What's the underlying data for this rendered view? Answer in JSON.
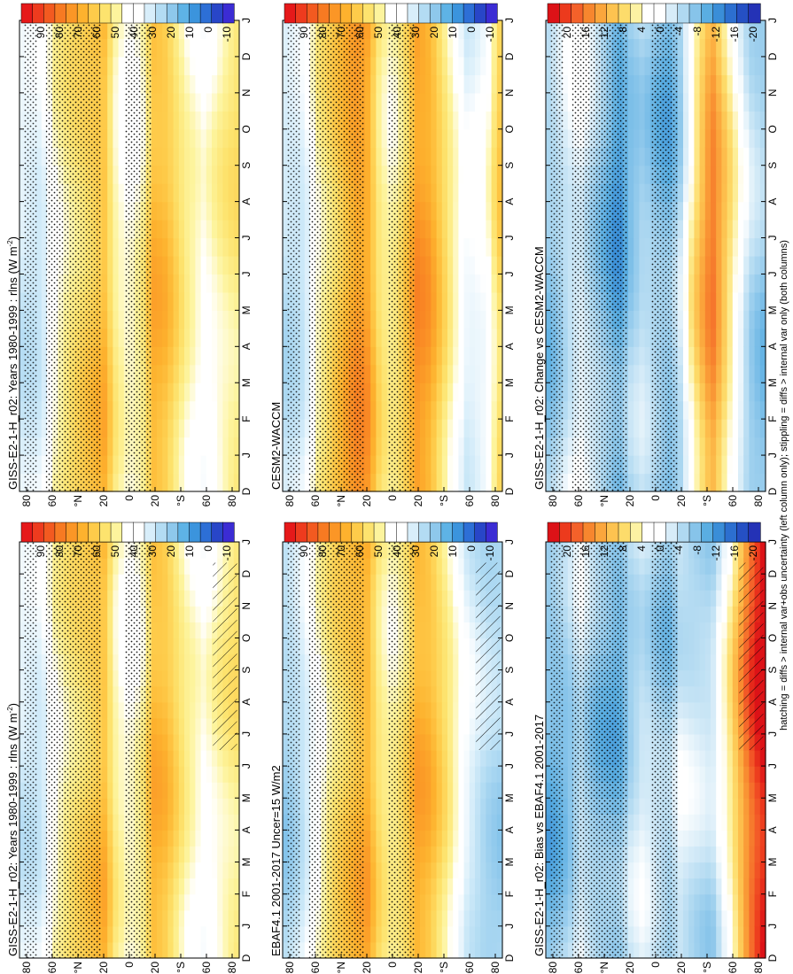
{
  "footer_note": "hatching = diffs > internal var+obs uncertainty (left column only); stippling = diffs > internal var only (both columns)",
  "colors": {
    "abs_scale": [
      "#e6191a",
      "#ee3b1e",
      "#f35a20",
      "#f77a22",
      "#fb9626",
      "#fdb22e",
      "#fecb4a",
      "#fde36e",
      "#fdf49d",
      "#ffffff",
      "#ffffff",
      "#d8eefa",
      "#b3dcf3",
      "#8ec8ec",
      "#5eb3e6",
      "#3b94dd",
      "#2d6fd6",
      "#2846c8",
      "#3b2cd4"
    ],
    "diff_scale": [
      "#dc1217",
      "#ec3a1d",
      "#f4612a",
      "#f7862e",
      "#fba63c",
      "#fdc350",
      "#fddc6b",
      "#fdf2a3",
      "#ffffff",
      "#ffffff",
      "#d7ecf8",
      "#b0d9f1",
      "#87c4ea",
      "#5aaee2",
      "#3a8ed8",
      "#2c6fd0",
      "#2550c4",
      "#2432b6"
    ]
  },
  "chart_data": [
    {
      "type": "heatmap",
      "title": "GISS-E2-1-H_r02: Years 1980-1999 : rlns (W m",
      "title_superscript": "-2",
      "title_tail": ")",
      "x_ticks": [
        "D",
        "J",
        "F",
        "M",
        "A",
        "M",
        "J",
        "J",
        "A",
        "S",
        "O",
        "N",
        "D",
        "J"
      ],
      "y_ticks": [
        "80",
        "60",
        "°N",
        "20",
        "0",
        "20",
        "°S",
        "60",
        "80"
      ],
      "colorbar_ticks": [
        "90",
        "80",
        "70",
        "60",
        "50",
        "40",
        "30",
        "20",
        "10",
        "0",
        "-10"
      ],
      "colorbar_range": [
        -15,
        95
      ],
      "value_range": [
        5,
        75
      ],
      "center_value": 40,
      "lat_profile": [
        {
          "lat": 85,
          "value": 28
        },
        {
          "lat": 70,
          "value": 28
        },
        {
          "lat": 60,
          "value": 42
        },
        {
          "lat": 48,
          "value": 50
        },
        {
          "lat": 30,
          "value": 58
        },
        {
          "lat": 20,
          "value": 62
        },
        {
          "lat": 10,
          "value": 45
        },
        {
          "lat": 0,
          "value": 40
        },
        {
          "lat": -10,
          "value": 45
        },
        {
          "lat": -20,
          "value": 63
        },
        {
          "lat": -30,
          "value": 60
        },
        {
          "lat": -45,
          "value": 46
        },
        {
          "lat": -60,
          "value": 38
        },
        {
          "lat": -75,
          "value": 46
        },
        {
          "lat": -85,
          "value": 50
        }
      ]
    },
    {
      "type": "heatmap",
      "title": "GISS-E2-1-H_r02: Years 1980-1999 : rlns (W m",
      "title_superscript": "-2",
      "title_tail": ")",
      "x_ticks": [
        "D",
        "J",
        "F",
        "M",
        "A",
        "M",
        "J",
        "J",
        "A",
        "S",
        "O",
        "N",
        "D",
        "J"
      ],
      "y_ticks": [
        "80",
        "60",
        "°N",
        "20",
        "0",
        "20",
        "°S",
        "60",
        "80"
      ],
      "colorbar_ticks": [
        "90",
        "80",
        "70",
        "60",
        "50",
        "40",
        "30",
        "20",
        "10",
        "0",
        "-10"
      ],
      "colorbar_range": [
        -15,
        95
      ],
      "value_range": [
        5,
        75
      ],
      "center_value": 40,
      "lat_profile": [
        {
          "lat": 85,
          "value": 28
        },
        {
          "lat": 70,
          "value": 28
        },
        {
          "lat": 60,
          "value": 42
        },
        {
          "lat": 48,
          "value": 50
        },
        {
          "lat": 30,
          "value": 58
        },
        {
          "lat": 20,
          "value": 62
        },
        {
          "lat": 10,
          "value": 45
        },
        {
          "lat": 0,
          "value": 40
        },
        {
          "lat": -10,
          "value": 45
        },
        {
          "lat": -20,
          "value": 63
        },
        {
          "lat": -30,
          "value": 60
        },
        {
          "lat": -45,
          "value": 46
        },
        {
          "lat": -60,
          "value": 38
        },
        {
          "lat": -75,
          "value": 46
        },
        {
          "lat": -85,
          "value": 50
        }
      ]
    },
    {
      "type": "heatmap",
      "title": "EBAF4.1 2001-2017 Uncer=15 W/m2",
      "x_ticks": [
        "D",
        "J",
        "F",
        "M",
        "A",
        "M",
        "J",
        "J",
        "A",
        "S",
        "O",
        "N",
        "D",
        "J"
      ],
      "y_ticks": [
        "80",
        "60",
        "°N",
        "20",
        "0",
        "20",
        "°S",
        "60",
        "80"
      ],
      "colorbar_ticks": [
        "90",
        "80",
        "70",
        "60",
        "50",
        "40",
        "30",
        "20",
        "10",
        "0",
        "-10"
      ],
      "colorbar_range": [
        -15,
        95
      ],
      "value_range": [
        5,
        75
      ],
      "center_value": 40,
      "lat_profile": [
        {
          "lat": 85,
          "value": 20
        },
        {
          "lat": 70,
          "value": 28
        },
        {
          "lat": 60,
          "value": 40
        },
        {
          "lat": 48,
          "value": 52
        },
        {
          "lat": 30,
          "value": 62
        },
        {
          "lat": 20,
          "value": 65
        },
        {
          "lat": 10,
          "value": 50
        },
        {
          "lat": 0,
          "value": 45
        },
        {
          "lat": -10,
          "value": 52
        },
        {
          "lat": -20,
          "value": 65
        },
        {
          "lat": -30,
          "value": 62
        },
        {
          "lat": -45,
          "value": 48
        },
        {
          "lat": -60,
          "value": 30
        },
        {
          "lat": -75,
          "value": 22
        },
        {
          "lat": -85,
          "value": 20
        }
      ]
    },
    {
      "type": "heatmap",
      "title": "CESM2-WACCM",
      "x_ticks": [
        "D",
        "J",
        "F",
        "M",
        "A",
        "M",
        "J",
        "J",
        "A",
        "S",
        "O",
        "N",
        "D",
        "J"
      ],
      "y_ticks": [
        "80",
        "60",
        "°N",
        "20",
        "0",
        "20",
        "°S",
        "60",
        "80"
      ],
      "colorbar_ticks": [
        "90",
        "80",
        "70",
        "60",
        "50",
        "40",
        "30",
        "20",
        "10",
        "0",
        "-10"
      ],
      "colorbar_range": [
        -15,
        95
      ],
      "value_range": [
        5,
        75
      ],
      "center_value": 40,
      "lat_profile": [
        {
          "lat": 85,
          "value": 25
        },
        {
          "lat": 70,
          "value": 28
        },
        {
          "lat": 60,
          "value": 45
        },
        {
          "lat": 48,
          "value": 55
        },
        {
          "lat": 30,
          "value": 70
        },
        {
          "lat": 20,
          "value": 68
        },
        {
          "lat": 10,
          "value": 50
        },
        {
          "lat": 0,
          "value": 45
        },
        {
          "lat": -10,
          "value": 55
        },
        {
          "lat": -20,
          "value": 70
        },
        {
          "lat": -30,
          "value": 66
        },
        {
          "lat": -45,
          "value": 48
        },
        {
          "lat": -60,
          "value": 30
        },
        {
          "lat": -75,
          "value": 35
        },
        {
          "lat": -85,
          "value": 55
        }
      ]
    },
    {
      "type": "heatmap",
      "title": "GISS-E2-1-H_r02: Bias vs EBAF4.1 2001-2017",
      "x_ticks": [
        "D",
        "J",
        "F",
        "M",
        "A",
        "M",
        "J",
        "J",
        "A",
        "S",
        "O",
        "N",
        "D",
        "J"
      ],
      "y_ticks": [
        "80",
        "60",
        "°N",
        "20",
        "0",
        "20",
        "°S",
        "60",
        "80"
      ],
      "colorbar_ticks": [
        "20",
        "16",
        "12",
        "8",
        "4",
        "0",
        "-4",
        "-8",
        "-12",
        "-16",
        "-20"
      ],
      "colorbar_range": [
        -22,
        22
      ],
      "value_range": [
        -20,
        20
      ],
      "center_value": 0,
      "lat_profile": [
        {
          "lat": 85,
          "value": -10
        },
        {
          "lat": 70,
          "value": -8
        },
        {
          "lat": 60,
          "value": -4
        },
        {
          "lat": 48,
          "value": -8
        },
        {
          "lat": 30,
          "value": -10
        },
        {
          "lat": 20,
          "value": -6
        },
        {
          "lat": 10,
          "value": -4
        },
        {
          "lat": 0,
          "value": -6
        },
        {
          "lat": -10,
          "value": -8
        },
        {
          "lat": -20,
          "value": -4
        },
        {
          "lat": -30,
          "value": -5
        },
        {
          "lat": -45,
          "value": -6
        },
        {
          "lat": -60,
          "value": 4
        },
        {
          "lat": -75,
          "value": 16
        },
        {
          "lat": -85,
          "value": 22
        }
      ]
    },
    {
      "type": "heatmap",
      "title": "GISS-E2-1-H_r02: Change vs CESM2-WACCM",
      "x_ticks": [
        "D",
        "J",
        "F",
        "M",
        "A",
        "M",
        "J",
        "J",
        "A",
        "S",
        "O",
        "N",
        "D",
        "J"
      ],
      "y_ticks": [
        "80",
        "60",
        "°N",
        "20",
        "0",
        "20",
        "°S",
        "60",
        "80"
      ],
      "colorbar_ticks": [
        "20",
        "16",
        "12",
        "8",
        "4",
        "0",
        "-4",
        "-8",
        "-12",
        "-16",
        "-20"
      ],
      "colorbar_range": [
        -22,
        22
      ],
      "value_range": [
        -20,
        20
      ],
      "center_value": 0,
      "lat_profile": [
        {
          "lat": 85,
          "value": -8
        },
        {
          "lat": 70,
          "value": -4
        },
        {
          "lat": 60,
          "value": -2
        },
        {
          "lat": 48,
          "value": -6
        },
        {
          "lat": 30,
          "value": -12
        },
        {
          "lat": 20,
          "value": -8
        },
        {
          "lat": 10,
          "value": -6
        },
        {
          "lat": 0,
          "value": -8
        },
        {
          "lat": -10,
          "value": -10
        },
        {
          "lat": -20,
          "value": -6
        },
        {
          "lat": -30,
          "value": 4
        },
        {
          "lat": -45,
          "value": 14
        },
        {
          "lat": -60,
          "value": 4
        },
        {
          "lat": -75,
          "value": -6
        },
        {
          "lat": -85,
          "value": -8
        }
      ]
    }
  ]
}
